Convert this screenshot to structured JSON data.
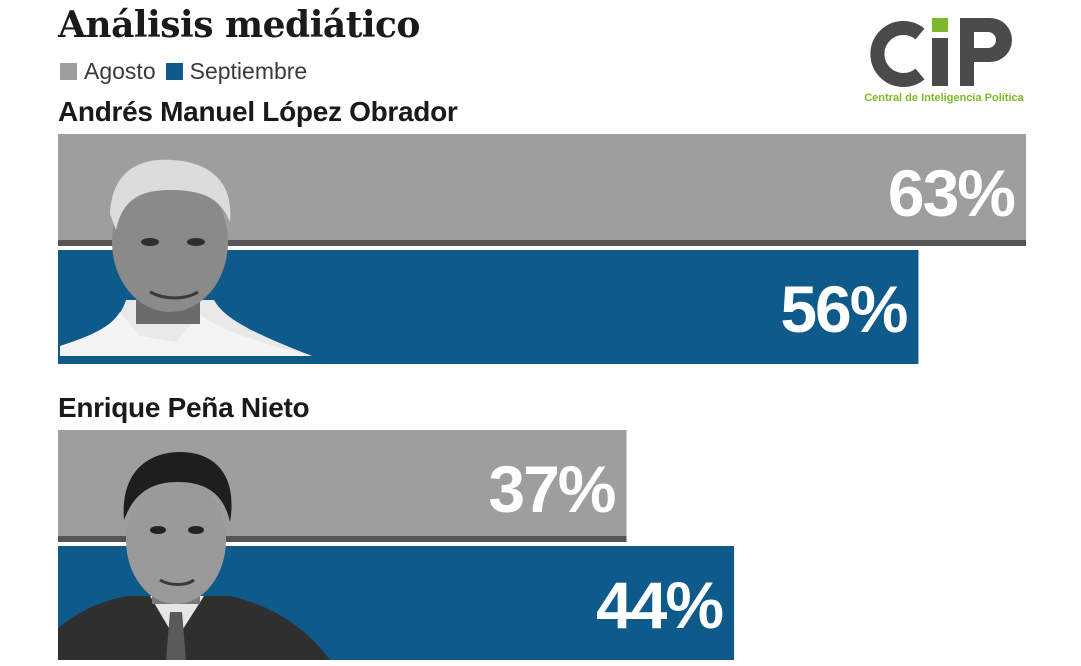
{
  "chart_data": {
    "type": "bar",
    "title": "Análisis mediático",
    "categories": [
      "Andrés Manuel López Obrador",
      "Enrique Peña Nieto"
    ],
    "series": [
      {
        "name": "Agosto",
        "color": "#9e9e9e",
        "values": [
          63,
          37
        ]
      },
      {
        "name": "Septiembre",
        "color": "#0e5a8a",
        "values": [
          56,
          44
        ]
      }
    ],
    "value_labels": [
      [
        "63%",
        "56%"
      ],
      [
        "37%",
        "44%"
      ]
    ],
    "unit": "%",
    "legend": "top-left",
    "grid": false
  },
  "logo": {
    "letters": "CiP",
    "subtitle": "Central de Inteligencia Política",
    "color_dark": "#4a4a4a",
    "color_accent": "#7ab929"
  }
}
